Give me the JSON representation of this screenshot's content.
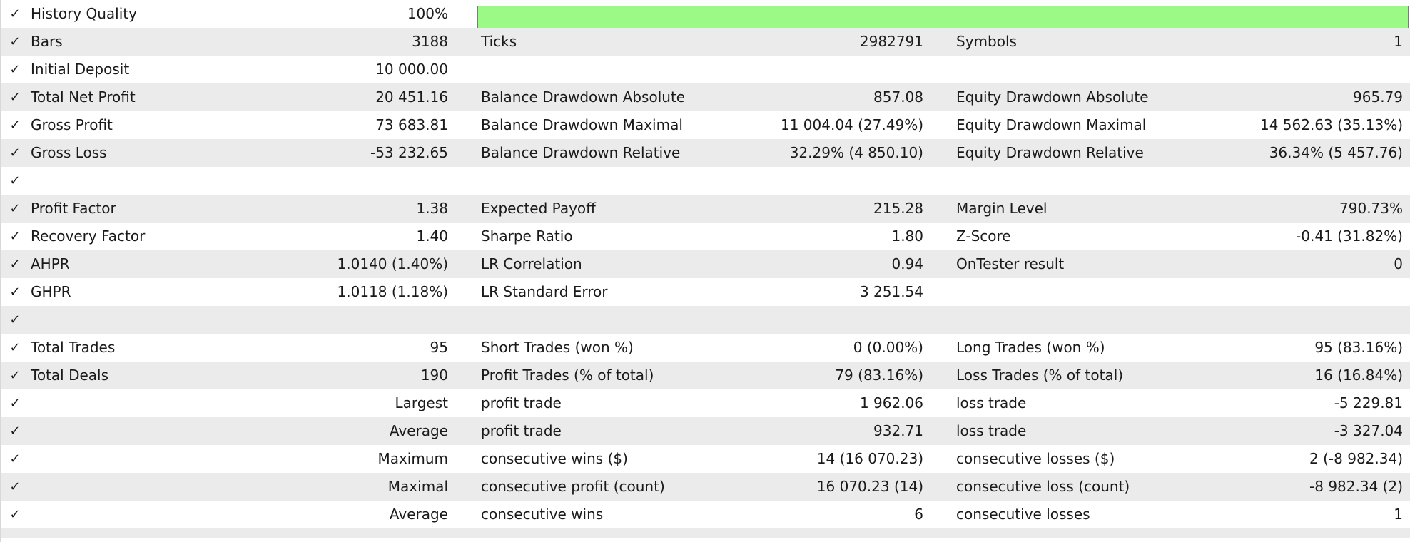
{
  "check_glyph": "✓",
  "colors": {
    "quality_fill": "#9bfa86",
    "row_alt": "#ebebeb",
    "row_plain": "#ffffff"
  },
  "history_quality": {
    "label": "History Quality",
    "value": "100%",
    "fraction": 1.0
  },
  "rows": [
    {
      "l1": "Bars",
      "v1": "3188",
      "l2": "Ticks",
      "v2": "2982791",
      "l3": "Symbols",
      "v3": "1"
    },
    {
      "l1": "Initial Deposit",
      "v1": "10 000.00",
      "l2": "",
      "v2": "",
      "l3": "",
      "v3": ""
    },
    {
      "l1": "Total Net Profit",
      "v1": "20 451.16",
      "l2": "Balance Drawdown Absolute",
      "v2": "857.08",
      "l3": "Equity Drawdown Absolute",
      "v3": "965.79"
    },
    {
      "l1": "Gross Profit",
      "v1": "73 683.81",
      "l2": "Balance Drawdown Maximal",
      "v2": "11 004.04 (27.49%)",
      "l3": "Equity Drawdown Maximal",
      "v3": "14 562.63 (35.13%)"
    },
    {
      "l1": "Gross Loss",
      "v1": "-53 232.65",
      "l2": "Balance Drawdown Relative",
      "v2": "32.29% (4 850.10)",
      "l3": "Equity Drawdown Relative",
      "v3": "36.34% (5 457.76)"
    },
    {
      "l1": "",
      "v1": "",
      "l2": "",
      "v2": "",
      "l3": "",
      "v3": ""
    },
    {
      "l1": "Profit Factor",
      "v1": "1.38",
      "l2": "Expected Payoff",
      "v2": "215.28",
      "l3": "Margin Level",
      "v3": "790.73%"
    },
    {
      "l1": "Recovery Factor",
      "v1": "1.40",
      "l2": "Sharpe Ratio",
      "v2": "1.80",
      "l3": "Z-Score",
      "v3": "-0.41 (31.82%)"
    },
    {
      "l1": "AHPR",
      "v1": "1.0140 (1.40%)",
      "l2": "LR Correlation",
      "v2": "0.94",
      "l3": "OnTester result",
      "v3": "0"
    },
    {
      "l1": "GHPR",
      "v1": "1.0118 (1.18%)",
      "l2": "LR Standard Error",
      "v2": "3 251.54",
      "l3": "",
      "v3": ""
    },
    {
      "l1": "",
      "v1": "",
      "l2": "",
      "v2": "",
      "l3": "",
      "v3": ""
    },
    {
      "l1": "Total Trades",
      "v1": "95",
      "l2": "Short Trades (won %)",
      "v2": "0 (0.00%)",
      "l3": "Long Trades (won %)",
      "v3": "95 (83.16%)"
    },
    {
      "l1": "Total Deals",
      "v1": "190",
      "l2": "Profit Trades (% of total)",
      "v2": "79 (83.16%)",
      "l3": "Loss Trades (% of total)",
      "v3": "16 (16.84%)"
    },
    {
      "l1": "",
      "v1": "Largest",
      "l2": "profit trade",
      "v2": "1 962.06",
      "l3": "loss trade",
      "v3": "-5 229.81"
    },
    {
      "l1": "",
      "v1": "Average",
      "l2": "profit trade",
      "v2": "932.71",
      "l3": "loss trade",
      "v3": "-3 327.04"
    },
    {
      "l1": "",
      "v1": "Maximum",
      "l2": "consecutive wins ($)",
      "v2": "14 (16 070.23)",
      "l3": "consecutive losses ($)",
      "v3": "2 (-8 982.34)"
    },
    {
      "l1": "",
      "v1": "Maximal",
      "l2": "consecutive profit (count)",
      "v2": "16 070.23 (14)",
      "l3": "consecutive loss (count)",
      "v3": "-8 982.34 (2)"
    },
    {
      "l1": "",
      "v1": "Average",
      "l2": "consecutive wins",
      "v2": "6",
      "l3": "consecutive losses",
      "v3": "1"
    }
  ]
}
